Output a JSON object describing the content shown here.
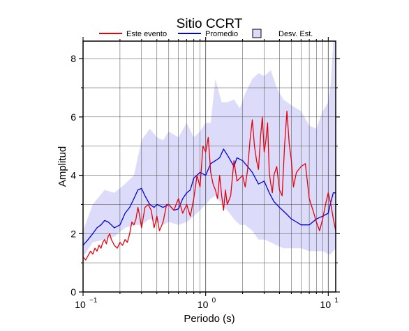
{
  "chart_data": {
    "type": "line",
    "title": "Sitio CCRT",
    "xlabel": "Periodo (s)",
    "ylabel": "Amplitud",
    "x_scale": "log",
    "xlim": [
      0.1,
      11.5
    ],
    "ylim": [
      0,
      8.6
    ],
    "x_ticks": [
      {
        "value": 0.1,
        "base": "10",
        "exp": "−1"
      },
      {
        "value": 1,
        "base": "10",
        "exp": "0"
      },
      {
        "value": 10,
        "base": "10",
        "exp": "1"
      }
    ],
    "y_ticks": [
      0,
      2,
      4,
      6,
      8
    ],
    "grid": true,
    "legend_position": "top",
    "legend": [
      {
        "label": "Este evento",
        "kind": "line",
        "color": "#e8000b"
      },
      {
        "label": "Promedio",
        "kind": "line",
        "color": "#0000e0"
      },
      {
        "label": "Desv. Est.",
        "kind": "box",
        "color": "#dcdcfa"
      }
    ],
    "band": {
      "name": "Desv. Est.",
      "color": "#dcdcfa",
      "x": [
        0.1,
        0.12,
        0.15,
        0.18,
        0.22,
        0.26,
        0.3,
        0.35,
        0.4,
        0.45,
        0.5,
        0.6,
        0.7,
        0.8,
        0.9,
        1.0,
        1.1,
        1.2,
        1.35,
        1.5,
        1.7,
        1.9,
        2.1,
        2.4,
        2.7,
        3.0,
        3.4,
        3.8,
        4.3,
        5.0,
        6.0,
        7.0,
        8.0,
        9.0,
        10.0,
        10.5,
        11.0,
        11.5
      ],
      "upper": [
        2.1,
        3.0,
        3.5,
        3.4,
        3.7,
        4.0,
        5.2,
        5.6,
        5.3,
        5.2,
        5.5,
        5.3,
        5.8,
        5.3,
        5.5,
        5.8,
        5.8,
        7.3,
        6.5,
        6.5,
        6.6,
        6.3,
        6.8,
        7.3,
        7.5,
        7.4,
        7.6,
        7.0,
        6.6,
        6.4,
        6.2,
        5.7,
        5.6,
        6.2,
        6.5,
        7.2,
        8.6,
        8.6
      ],
      "lower": [
        1.2,
        1.7,
        1.8,
        1.9,
        2.2,
        2.3,
        2.3,
        2.5,
        2.4,
        2.3,
        2.4,
        2.3,
        2.4,
        2.6,
        2.8,
        3.0,
        3.2,
        3.3,
        3.0,
        2.8,
        2.5,
        2.3,
        2.3,
        2.1,
        1.8,
        1.8,
        1.7,
        1.6,
        1.5,
        1.5,
        1.5,
        1.4,
        1.4,
        1.4,
        1.3,
        1.3,
        1.4,
        1.5
      ]
    },
    "series": [
      {
        "name": "Promedio",
        "color": "#0000e0",
        "x": [
          0.1,
          0.11,
          0.12,
          0.13,
          0.14,
          0.15,
          0.16,
          0.17,
          0.18,
          0.2,
          0.22,
          0.24,
          0.26,
          0.28,
          0.3,
          0.32,
          0.35,
          0.38,
          0.4,
          0.45,
          0.5,
          0.55,
          0.6,
          0.65,
          0.7,
          0.75,
          0.8,
          0.9,
          1.0,
          1.1,
          1.2,
          1.3,
          1.4,
          1.5,
          1.6,
          1.7,
          1.8,
          2.0,
          2.2,
          2.4,
          2.7,
          3.0,
          3.3,
          3.6,
          4.0,
          4.5,
          5.0,
          5.5,
          6.0,
          7.0,
          8.0,
          9.0,
          10.0,
          10.5,
          11.0,
          11.5
        ],
        "y": [
          1.6,
          1.8,
          2.0,
          2.2,
          2.3,
          2.45,
          2.4,
          2.3,
          2.2,
          2.3,
          2.7,
          2.9,
          3.2,
          3.5,
          3.55,
          3.3,
          3.0,
          2.9,
          3.0,
          2.9,
          3.0,
          2.8,
          2.85,
          3.2,
          3.4,
          3.5,
          3.9,
          4.1,
          4.0,
          4.4,
          4.5,
          4.6,
          4.9,
          4.7,
          4.5,
          4.3,
          4.6,
          4.5,
          4.3,
          4.1,
          3.7,
          3.8,
          3.4,
          3.1,
          2.9,
          2.7,
          2.5,
          2.4,
          2.3,
          2.3,
          2.5,
          2.6,
          2.7,
          3.1,
          3.4,
          3.4
        ]
      },
      {
        "name": "Este evento",
        "color": "#e8000b",
        "x": [
          0.1,
          0.105,
          0.11,
          0.115,
          0.12,
          0.125,
          0.13,
          0.135,
          0.14,
          0.145,
          0.15,
          0.155,
          0.16,
          0.165,
          0.17,
          0.18,
          0.19,
          0.2,
          0.21,
          0.22,
          0.23,
          0.24,
          0.25,
          0.26,
          0.27,
          0.28,
          0.29,
          0.3,
          0.32,
          0.34,
          0.36,
          0.38,
          0.4,
          0.42,
          0.45,
          0.48,
          0.5,
          0.55,
          0.6,
          0.65,
          0.7,
          0.75,
          0.8,
          0.85,
          0.9,
          0.95,
          1.0,
          1.05,
          1.1,
          1.15,
          1.2,
          1.25,
          1.3,
          1.35,
          1.4,
          1.45,
          1.5,
          1.6,
          1.7,
          1.8,
          1.9,
          2.0,
          2.1,
          2.2,
          2.3,
          2.4,
          2.5,
          2.6,
          2.7,
          2.8,
          2.9,
          3.0,
          3.1,
          3.2,
          3.3,
          3.4,
          3.5,
          3.6,
          3.8,
          4.0,
          4.2,
          4.4,
          4.6,
          4.8,
          5.0,
          5.2,
          5.5,
          6.0,
          6.5,
          7.0,
          7.5,
          8.0,
          8.5,
          9.0,
          9.5,
          10.0,
          10.5,
          11.0,
          11.5
        ],
        "y": [
          1.2,
          1.1,
          1.25,
          1.4,
          1.3,
          1.5,
          1.4,
          1.6,
          1.5,
          1.7,
          1.8,
          1.65,
          1.9,
          2.0,
          1.8,
          1.6,
          1.5,
          1.7,
          1.6,
          1.8,
          1.7,
          2.0,
          2.4,
          2.3,
          2.5,
          2.9,
          2.6,
          2.2,
          2.9,
          3.0,
          2.8,
          2.2,
          2.6,
          2.1,
          2.4,
          3.0,
          3.0,
          2.8,
          3.2,
          2.7,
          3.0,
          2.6,
          3.2,
          4.0,
          3.6,
          5.0,
          4.8,
          5.3,
          4.1,
          3.7,
          3.5,
          3.2,
          4.0,
          3.3,
          2.8,
          3.5,
          3.0,
          3.3,
          4.5,
          3.8,
          3.9,
          4.0,
          3.6,
          4.2,
          5.2,
          5.9,
          5.0,
          4.5,
          4.2,
          5.3,
          6.0,
          4.8,
          5.2,
          5.8,
          4.1,
          3.7,
          3.4,
          4.0,
          4.3,
          3.5,
          3.3,
          5.0,
          6.2,
          5.1,
          4.5,
          3.6,
          4.1,
          4.3,
          4.4,
          3.2,
          2.8,
          2.4,
          2.1,
          2.5,
          3.0,
          3.4,
          3.0,
          2.5,
          2.1
        ]
      }
    ]
  }
}
